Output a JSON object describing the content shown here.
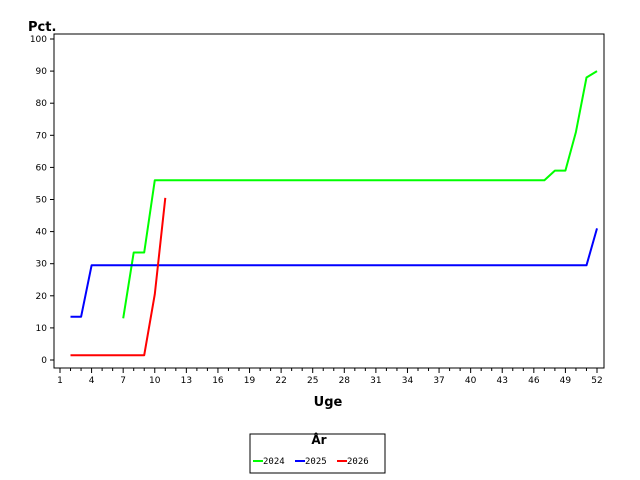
{
  "chart_data": {
    "type": "line",
    "ylabel": "Pct.",
    "xlabel": "Uge",
    "xlim": [
      1,
      52.5
    ],
    "ylim": [
      0,
      100
    ],
    "x_ticks": [
      1,
      4,
      7,
      10,
      13,
      16,
      19,
      22,
      25,
      28,
      31,
      34,
      37,
      40,
      43,
      46,
      49,
      52
    ],
    "y_ticks": [
      0,
      10,
      20,
      30,
      40,
      50,
      60,
      70,
      80,
      90,
      100
    ],
    "grid": false,
    "legend": {
      "title": "År",
      "placement": "bottom-center"
    },
    "series": [
      {
        "name": "2024",
        "color": "#00ff00",
        "points": [
          [
            7,
            13
          ],
          [
            8,
            33.5
          ],
          [
            9,
            33.5
          ],
          [
            10,
            56
          ],
          [
            47,
            56
          ],
          [
            48,
            59
          ],
          [
            49,
            59
          ],
          [
            50,
            71
          ],
          [
            51,
            88
          ],
          [
            52,
            90
          ]
        ]
      },
      {
        "name": "2025",
        "color": "#0000ff",
        "points": [
          [
            2,
            13.5
          ],
          [
            3,
            13.5
          ],
          [
            4,
            29.5
          ],
          [
            51,
            29.5
          ],
          [
            52,
            41
          ]
        ]
      },
      {
        "name": "2026",
        "color": "#ff0000",
        "points": [
          [
            2,
            1.5
          ],
          [
            9,
            1.5
          ],
          [
            10,
            20.5
          ],
          [
            11,
            50.5
          ]
        ]
      }
    ]
  }
}
